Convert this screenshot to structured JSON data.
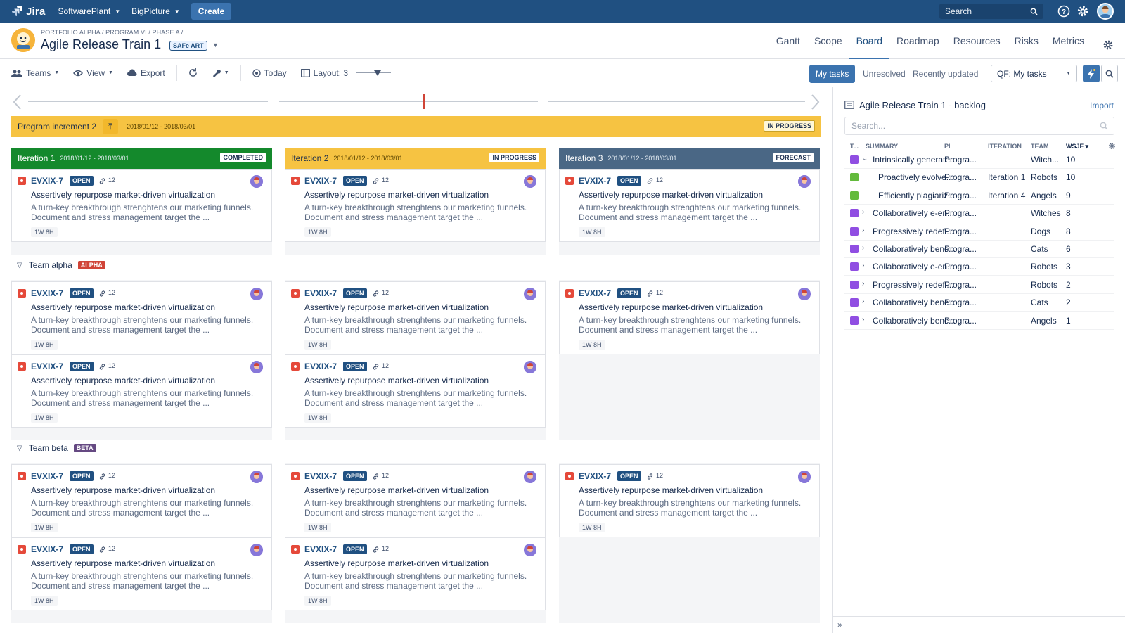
{
  "topbar": {
    "logo_text": "Jira",
    "nav": [
      "SoftwarePlant",
      "BigPicture"
    ],
    "create_label": "Create",
    "search_placeholder": "Search"
  },
  "project": {
    "breadcrumb": "PORTFOLIO ALPHA / PROGRAM VI / PHASE A /",
    "title": "Agile Release Train 1",
    "badge": "SAFe ART",
    "tabs": [
      "Gantt",
      "Scope",
      "Board",
      "Roadmap",
      "Resources",
      "Risks",
      "Metrics"
    ],
    "active_tab": "Board"
  },
  "toolbar": {
    "teams": "Teams",
    "view": "View",
    "export": "Export",
    "today": "Today",
    "layout": "Layout: 3",
    "my_tasks": "My tasks",
    "unresolved": "Unresolved",
    "recently_updated": "Recently updated",
    "qf_value": "QF: My tasks"
  },
  "program_increment": {
    "name": "Program increment 2",
    "dates": "2018/01/12 - 2018/03/01",
    "status": "IN PROGRESS"
  },
  "iterations": [
    {
      "name": "Iteration 1",
      "dates": "2018/01/12 - 2018/03/01",
      "status": "COMPLETED",
      "color": "#14892c"
    },
    {
      "name": "Iteration 2",
      "dates": "2018/01/12 - 2018/03/01",
      "status": "IN PROGRESS",
      "color": "#f6c342"
    },
    {
      "name": "Iteration 3",
      "dates": "2018/01/12 - 2018/03/01",
      "status": "FORECAST",
      "color": "#4a6785"
    }
  ],
  "card": {
    "key": "EVXIX-7",
    "status": "OPEN",
    "links": "12",
    "title": "Assertively repurpose market-driven virtualization",
    "description": "A turn-key breakthrough strenghtens our marketing funnels. Document and stress management target the ...",
    "estimate": "1W 8H"
  },
  "teams": [
    {
      "name": "Team alpha",
      "badge": "ALPHA",
      "badge_color": "#d04437"
    },
    {
      "name": "Team beta",
      "badge": "BETA",
      "badge_color": "#654982"
    }
  ],
  "backlog": {
    "title": "Agile Release Train 1 - backlog",
    "import_label": "Import",
    "search_placeholder": "Search...",
    "columns": [
      "T...",
      "SUMMARY",
      "PI",
      "ITERATION",
      "TEAM",
      "WSJF"
    ],
    "rows": [
      {
        "type": "epic",
        "expand": true,
        "summary": "Intrinsically generate...",
        "pi": "Progra...",
        "iteration": "",
        "team": "Witch...",
        "wsjf": "10"
      },
      {
        "type": "story",
        "expand": false,
        "summary": "Proactively evolve...",
        "pi": "Progra...",
        "iteration": "Iteration 1",
        "team": "Robots",
        "wsjf": "10"
      },
      {
        "type": "story",
        "expand": false,
        "summary": "Efficiently plagiariz...",
        "pi": "Progra...",
        "iteration": "Iteration 4",
        "team": "Angels",
        "wsjf": "9"
      },
      {
        "type": "epic",
        "expand": true,
        "summary": "Collaboratively e-en...",
        "pi": "Progra...",
        "iteration": "",
        "team": "Witches",
        "wsjf": "8"
      },
      {
        "type": "epic",
        "expand": true,
        "summary": "Progressively redefi...",
        "pi": "Progra...",
        "iteration": "",
        "team": "Dogs",
        "wsjf": "8"
      },
      {
        "type": "epic",
        "expand": true,
        "summary": "Collaboratively benc...",
        "pi": "Progra...",
        "iteration": "",
        "team": "Cats",
        "wsjf": "6"
      },
      {
        "type": "epic",
        "expand": true,
        "summary": "Collaboratively e-en...",
        "pi": "Progra...",
        "iteration": "",
        "team": "Robots",
        "wsjf": "3"
      },
      {
        "type": "epic",
        "expand": true,
        "summary": "Progressively redefi...",
        "pi": "Progra...",
        "iteration": "",
        "team": "Robots",
        "wsjf": "2"
      },
      {
        "type": "epic",
        "expand": true,
        "summary": "Collaboratively benc...",
        "pi": "Progra...",
        "iteration": "",
        "team": "Cats",
        "wsjf": "2"
      },
      {
        "type": "epic",
        "expand": true,
        "summary": "Collaboratively benc...",
        "pi": "Progra...",
        "iteration": "",
        "team": "Angels",
        "wsjf": "1"
      }
    ]
  },
  "colors": {
    "header": "#205081",
    "accent": "#3b73af",
    "epic": "#904ee2",
    "story": "#63ba3c",
    "bug": "#e5493a"
  }
}
